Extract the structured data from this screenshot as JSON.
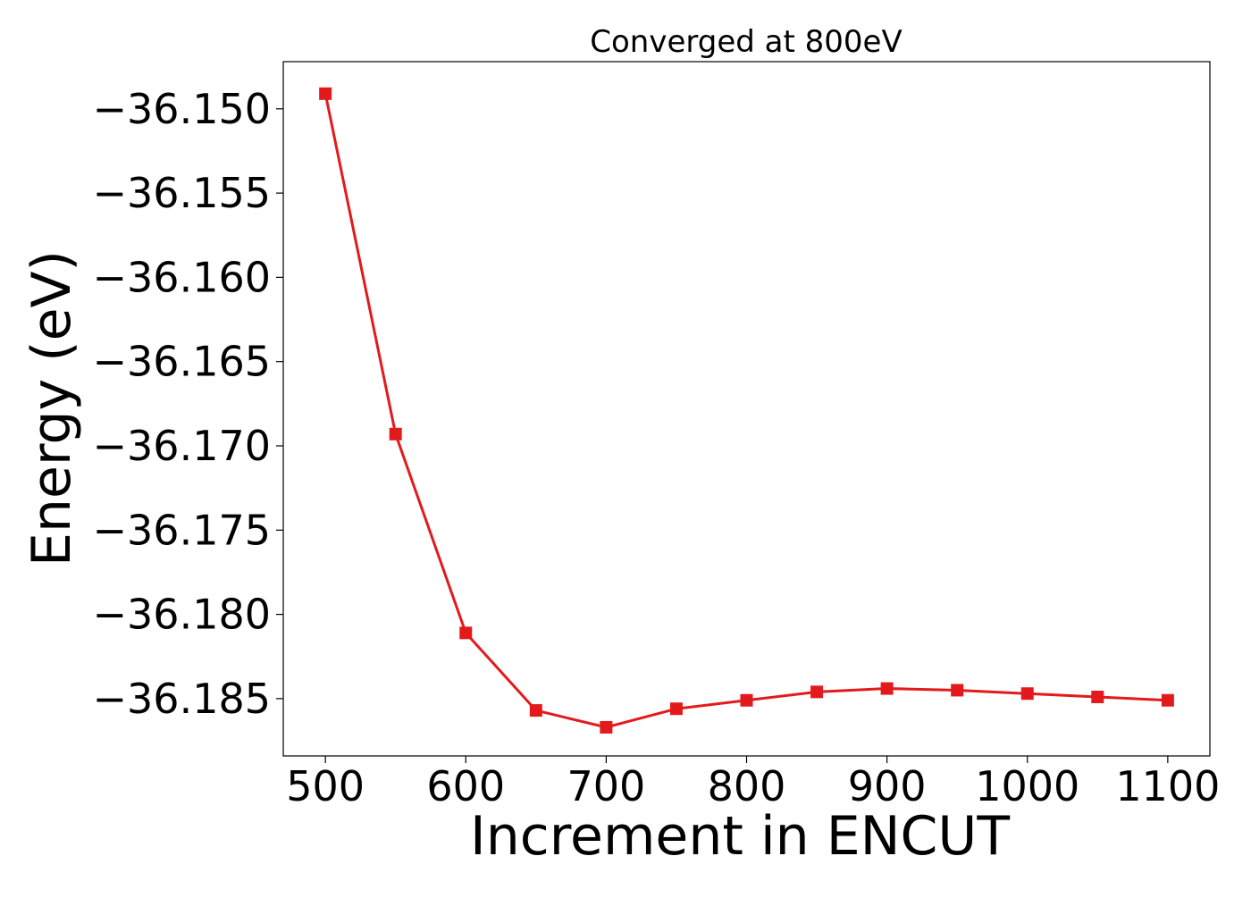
{
  "chart_data": {
    "type": "line",
    "title": "Converged at 800eV",
    "xlabel": "Increment in ENCUT",
    "ylabel": "Energy (eV)",
    "xlim": [
      470,
      1130
    ],
    "ylim": [
      -36.1884,
      -36.1472
    ],
    "x_ticks": [
      500,
      600,
      700,
      800,
      900,
      1000,
      1100
    ],
    "x_tick_labels": [
      "500",
      "600",
      "700",
      "800",
      "900",
      "1000",
      "1100"
    ],
    "y_ticks": [
      -36.15,
      -36.155,
      -36.16,
      -36.165,
      -36.17,
      -36.175,
      -36.18,
      -36.185
    ],
    "y_tick_labels": [
      "−36.150",
      "−36.155",
      "−36.160",
      "−36.165",
      "−36.170",
      "−36.175",
      "−36.180",
      "−36.185"
    ],
    "grid": false,
    "legend": "none",
    "marker": "square",
    "color": "#e31a1c",
    "series": [
      {
        "x": [
          500,
          550,
          600,
          650,
          700,
          750,
          800,
          850,
          900,
          950,
          1000,
          1050,
          1100
        ],
        "y": [
          -36.1491,
          -36.1693,
          -36.1811,
          -36.1857,
          -36.1867,
          -36.1856,
          -36.1851,
          -36.1846,
          -36.1844,
          -36.1845,
          -36.1847,
          -36.1849,
          -36.1851
        ]
      }
    ]
  }
}
